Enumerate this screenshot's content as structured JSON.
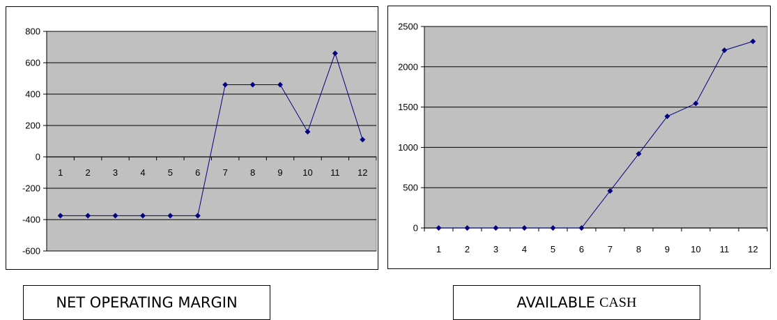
{
  "colors": {
    "plot_bg": "#c0c0c0",
    "series": "#000080",
    "grid": "#000000"
  },
  "chart_data": [
    {
      "type": "line",
      "title": "NET OPERATING MARGIN",
      "x": [
        1,
        2,
        3,
        4,
        5,
        6,
        7,
        8,
        9,
        10,
        11,
        12
      ],
      "categories": [
        "1",
        "2",
        "3",
        "4",
        "5",
        "6",
        "7",
        "8",
        "9",
        "10",
        "11",
        "12"
      ],
      "values": [
        -375,
        -375,
        -375,
        -375,
        -375,
        -375,
        460,
        460,
        460,
        160,
        660,
        110
      ],
      "ylim": [
        -600,
        800
      ],
      "yticks": [
        800,
        600,
        400,
        200,
        0,
        -200,
        -400,
        -600
      ],
      "ytick_labels": [
        "800",
        "600",
        "400",
        "200",
        "0",
        "-200",
        "-400",
        "-600"
      ],
      "grid": true,
      "legend": false
    },
    {
      "type": "line",
      "title_part1": "AVAILABLE",
      "title_part2": "CASH",
      "x": [
        1,
        2,
        3,
        4,
        5,
        6,
        7,
        8,
        9,
        10,
        11,
        12
      ],
      "categories": [
        "1",
        "2",
        "3",
        "4",
        "5",
        "6",
        "7",
        "8",
        "9",
        "10",
        "11",
        "12"
      ],
      "values": [
        0,
        0,
        0,
        0,
        0,
        0,
        460,
        920,
        1385,
        1545,
        2205,
        2315
      ],
      "ylim": [
        0,
        2500
      ],
      "yticks": [
        2500,
        2000,
        1500,
        1000,
        500,
        0
      ],
      "ytick_labels": [
        "2500",
        "2000",
        "1500",
        "1000",
        "500",
        "0"
      ],
      "grid": true,
      "legend": false
    }
  ]
}
